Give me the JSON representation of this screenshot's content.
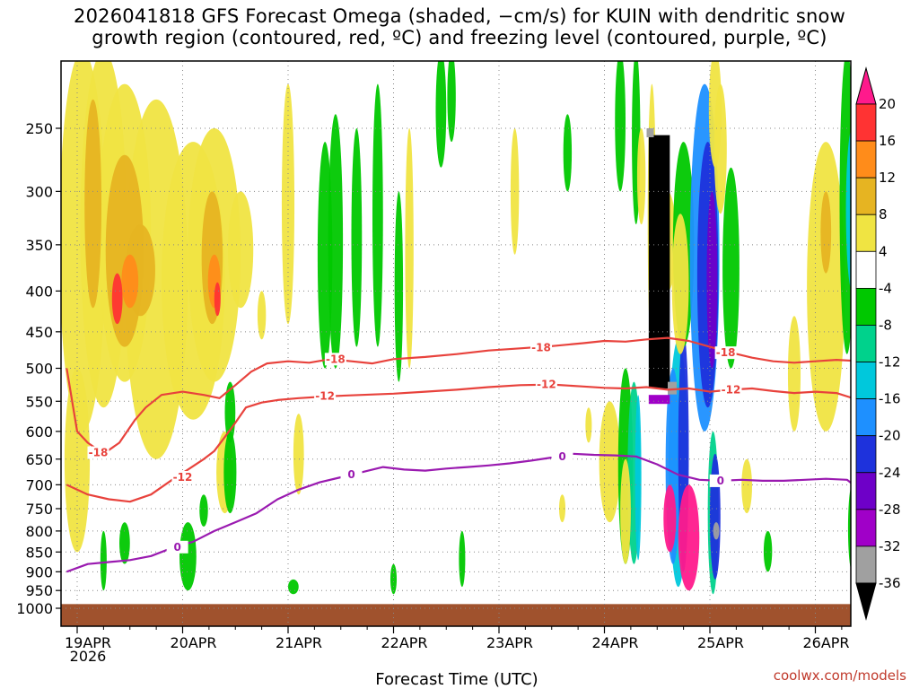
{
  "chart_data": {
    "type": "heatmap",
    "title_line1": "2026041818 GFS Forecast Omega (shaded, −cm/s) for KUIN with dendritic snow",
    "title_line2": "growth region (contoured, red, ºC) and freezing level (contoured, purple, ºC)",
    "xlabel": "Forecast Time (UTC)",
    "ylabel": "",
    "x_ticks": [
      "19APR",
      "20APR",
      "21APR",
      "22APR",
      "23APR",
      "24APR",
      "25APR",
      "26APR"
    ],
    "x_year": "2026",
    "x_range_days": [
      -0.1,
      7.45
    ],
    "y_ticks": [
      "250",
      "300",
      "350",
      "400",
      "450",
      "500",
      "550",
      "600",
      "650",
      "700",
      "750",
      "800",
      "850",
      "900",
      "950",
      "1000"
    ],
    "y_range_hpa": [
      200,
      1010
    ],
    "colorbar_levels": [
      "20",
      "16",
      "12",
      "8",
      "4",
      "-4",
      "-8",
      "-12",
      "-16",
      "-20",
      "-24",
      "-28",
      "-32",
      "-36"
    ],
    "colorbar_colors": [
      "#ff1a8c",
      "#ff3333",
      "#ff8c1a",
      "#e6b422",
      "#f0e442",
      "#ffffff",
      "#00c800",
      "#00d28c",
      "#00c8dc",
      "#1e90ff",
      "#1e32dc",
      "#6e00c8",
      "#a000c8",
      "#a0a0a0",
      "#000000"
    ],
    "contours": [
      {
        "name": "dgz -18C",
        "label": "-18",
        "color": "#e8423c",
        "x": [
          -0.1,
          0.0,
          0.1,
          0.25,
          0.4,
          0.55,
          0.65,
          0.8,
          1.0,
          1.2,
          1.35,
          1.5,
          1.65,
          1.8,
          2.0,
          2.2,
          2.4,
          2.6,
          2.8,
          3.0,
          3.3,
          3.6,
          3.9,
          4.2,
          4.5,
          4.8,
          5.0,
          5.2,
          5.4,
          5.6,
          5.8,
          6.0,
          6.2,
          6.4,
          6.6,
          6.8,
          7.0,
          7.2,
          7.45
        ],
        "y": [
          500,
          600,
          620,
          640,
          620,
          580,
          560,
          540,
          535,
          540,
          545,
          525,
          505,
          493,
          490,
          492,
          487,
          490,
          493,
          487,
          484,
          480,
          475,
          472,
          469,
          465,
          462,
          463,
          460,
          458,
          462,
          470,
          478,
          485,
          490,
          492,
          490,
          488,
          490
        ]
      },
      {
        "name": "dgz -12C",
        "label": "-12",
        "color": "#e8423c",
        "x": [
          -0.1,
          0.1,
          0.3,
          0.5,
          0.7,
          0.9,
          1.05,
          1.2,
          1.3,
          1.4,
          1.5,
          1.6,
          1.75,
          1.9,
          2.1,
          2.4,
          2.7,
          3.0,
          3.3,
          3.6,
          3.9,
          4.2,
          4.5,
          4.8,
          5.0,
          5.2,
          5.4,
          5.6,
          5.8,
          6.0,
          6.2,
          6.4,
          6.6,
          6.8,
          7.0,
          7.2,
          7.45
        ],
        "y": [
          700,
          720,
          730,
          735,
          720,
          690,
          670,
          650,
          635,
          610,
          585,
          560,
          552,
          548,
          545,
          542,
          540,
          538,
          535,
          532,
          528,
          525,
          524,
          527,
          529,
          530,
          528,
          532,
          530,
          535,
          532,
          530,
          534,
          537,
          535,
          537,
          550
        ]
      },
      {
        "name": "freezing level 0C",
        "label": "0",
        "color": "#9a1ab0",
        "x": [
          -0.1,
          0.1,
          0.3,
          0.5,
          0.7,
          0.9,
          1.1,
          1.3,
          1.5,
          1.7,
          1.9,
          2.1,
          2.3,
          2.5,
          2.7,
          2.9,
          3.1,
          3.3,
          3.5,
          3.7,
          3.9,
          4.1,
          4.3,
          4.5,
          4.7,
          4.9,
          5.1,
          5.3,
          5.5,
          5.7,
          5.9,
          6.1,
          6.3,
          6.5,
          6.7,
          6.9,
          7.1,
          7.3,
          7.45
        ],
        "y": [
          900,
          880,
          875,
          870,
          860,
          840,
          825,
          800,
          780,
          760,
          730,
          710,
          695,
          685,
          675,
          665,
          670,
          672,
          668,
          665,
          662,
          658,
          653,
          647,
          640,
          642,
          643,
          645,
          660,
          680,
          690,
          692,
          690,
          692,
          692,
          690,
          688,
          690,
          715
        ]
      }
    ],
    "contour_labels": [
      {
        "text": "-18",
        "color": "#e8423c",
        "x": 0.2,
        "p": 638
      },
      {
        "text": "-18",
        "color": "#e8423c",
        "x": 2.45,
        "p": 487
      },
      {
        "text": "-18",
        "color": "#e8423c",
        "x": 4.4,
        "p": 471
      },
      {
        "text": "-18",
        "color": "#e8423c",
        "x": 6.15,
        "p": 478
      },
      {
        "text": "-12",
        "color": "#e8423c",
        "x": 1.0,
        "p": 685
      },
      {
        "text": "-12",
        "color": "#e8423c",
        "x": 2.35,
        "p": 542
      },
      {
        "text": "-12",
        "color": "#e8423c",
        "x": 4.45,
        "p": 524
      },
      {
        "text": "-12",
        "color": "#e8423c",
        "x": 6.2,
        "p": 532
      },
      {
        "text": "0",
        "color": "#9a1ab0",
        "x": 0.95,
        "p": 838
      },
      {
        "text": "0",
        "color": "#9a1ab0",
        "x": 2.6,
        "p": 680
      },
      {
        "text": "0",
        "color": "#9a1ab0",
        "x": 4.6,
        "p": 645
      },
      {
        "text": "0",
        "color": "#9a1ab0",
        "x": 6.1,
        "p": 692
      }
    ],
    "terrain_p_top": 988,
    "terrain_color": "#a0522d"
  },
  "credit": "coolwx.com/models"
}
